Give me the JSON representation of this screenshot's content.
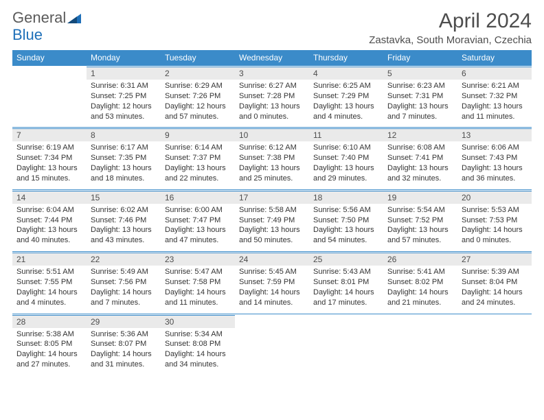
{
  "brand": {
    "general": "General",
    "blue": "Blue"
  },
  "title": "April 2024",
  "location": "Zastavka, South Moravian, Czechia",
  "colors": {
    "header_bg": "#3b8bc9",
    "header_text": "#ffffff",
    "daynum_bg": "#eaeaea",
    "border": "#3b8bc9",
    "text": "#333333",
    "title_text": "#4d4d4d"
  },
  "dayHeaders": [
    "Sunday",
    "Monday",
    "Tuesday",
    "Wednesday",
    "Thursday",
    "Friday",
    "Saturday"
  ],
  "days": [
    {
      "n": "",
      "sr": "",
      "ss": "",
      "dl": ""
    },
    {
      "n": "1",
      "sr": "Sunrise: 6:31 AM",
      "ss": "Sunset: 7:25 PM",
      "dl": "Daylight: 12 hours and 53 minutes."
    },
    {
      "n": "2",
      "sr": "Sunrise: 6:29 AM",
      "ss": "Sunset: 7:26 PM",
      "dl": "Daylight: 12 hours and 57 minutes."
    },
    {
      "n": "3",
      "sr": "Sunrise: 6:27 AM",
      "ss": "Sunset: 7:28 PM",
      "dl": "Daylight: 13 hours and 0 minutes."
    },
    {
      "n": "4",
      "sr": "Sunrise: 6:25 AM",
      "ss": "Sunset: 7:29 PM",
      "dl": "Daylight: 13 hours and 4 minutes."
    },
    {
      "n": "5",
      "sr": "Sunrise: 6:23 AM",
      "ss": "Sunset: 7:31 PM",
      "dl": "Daylight: 13 hours and 7 minutes."
    },
    {
      "n": "6",
      "sr": "Sunrise: 6:21 AM",
      "ss": "Sunset: 7:32 PM",
      "dl": "Daylight: 13 hours and 11 minutes."
    },
    {
      "n": "7",
      "sr": "Sunrise: 6:19 AM",
      "ss": "Sunset: 7:34 PM",
      "dl": "Daylight: 13 hours and 15 minutes."
    },
    {
      "n": "8",
      "sr": "Sunrise: 6:17 AM",
      "ss": "Sunset: 7:35 PM",
      "dl": "Daylight: 13 hours and 18 minutes."
    },
    {
      "n": "9",
      "sr": "Sunrise: 6:14 AM",
      "ss": "Sunset: 7:37 PM",
      "dl": "Daylight: 13 hours and 22 minutes."
    },
    {
      "n": "10",
      "sr": "Sunrise: 6:12 AM",
      "ss": "Sunset: 7:38 PM",
      "dl": "Daylight: 13 hours and 25 minutes."
    },
    {
      "n": "11",
      "sr": "Sunrise: 6:10 AM",
      "ss": "Sunset: 7:40 PM",
      "dl": "Daylight: 13 hours and 29 minutes."
    },
    {
      "n": "12",
      "sr": "Sunrise: 6:08 AM",
      "ss": "Sunset: 7:41 PM",
      "dl": "Daylight: 13 hours and 32 minutes."
    },
    {
      "n": "13",
      "sr": "Sunrise: 6:06 AM",
      "ss": "Sunset: 7:43 PM",
      "dl": "Daylight: 13 hours and 36 minutes."
    },
    {
      "n": "14",
      "sr": "Sunrise: 6:04 AM",
      "ss": "Sunset: 7:44 PM",
      "dl": "Daylight: 13 hours and 40 minutes."
    },
    {
      "n": "15",
      "sr": "Sunrise: 6:02 AM",
      "ss": "Sunset: 7:46 PM",
      "dl": "Daylight: 13 hours and 43 minutes."
    },
    {
      "n": "16",
      "sr": "Sunrise: 6:00 AM",
      "ss": "Sunset: 7:47 PM",
      "dl": "Daylight: 13 hours and 47 minutes."
    },
    {
      "n": "17",
      "sr": "Sunrise: 5:58 AM",
      "ss": "Sunset: 7:49 PM",
      "dl": "Daylight: 13 hours and 50 minutes."
    },
    {
      "n": "18",
      "sr": "Sunrise: 5:56 AM",
      "ss": "Sunset: 7:50 PM",
      "dl": "Daylight: 13 hours and 54 minutes."
    },
    {
      "n": "19",
      "sr": "Sunrise: 5:54 AM",
      "ss": "Sunset: 7:52 PM",
      "dl": "Daylight: 13 hours and 57 minutes."
    },
    {
      "n": "20",
      "sr": "Sunrise: 5:53 AM",
      "ss": "Sunset: 7:53 PM",
      "dl": "Daylight: 14 hours and 0 minutes."
    },
    {
      "n": "21",
      "sr": "Sunrise: 5:51 AM",
      "ss": "Sunset: 7:55 PM",
      "dl": "Daylight: 14 hours and 4 minutes."
    },
    {
      "n": "22",
      "sr": "Sunrise: 5:49 AM",
      "ss": "Sunset: 7:56 PM",
      "dl": "Daylight: 14 hours and 7 minutes."
    },
    {
      "n": "23",
      "sr": "Sunrise: 5:47 AM",
      "ss": "Sunset: 7:58 PM",
      "dl": "Daylight: 14 hours and 11 minutes."
    },
    {
      "n": "24",
      "sr": "Sunrise: 5:45 AM",
      "ss": "Sunset: 7:59 PM",
      "dl": "Daylight: 14 hours and 14 minutes."
    },
    {
      "n": "25",
      "sr": "Sunrise: 5:43 AM",
      "ss": "Sunset: 8:01 PM",
      "dl": "Daylight: 14 hours and 17 minutes."
    },
    {
      "n": "26",
      "sr": "Sunrise: 5:41 AM",
      "ss": "Sunset: 8:02 PM",
      "dl": "Daylight: 14 hours and 21 minutes."
    },
    {
      "n": "27",
      "sr": "Sunrise: 5:39 AM",
      "ss": "Sunset: 8:04 PM",
      "dl": "Daylight: 14 hours and 24 minutes."
    },
    {
      "n": "28",
      "sr": "Sunrise: 5:38 AM",
      "ss": "Sunset: 8:05 PM",
      "dl": "Daylight: 14 hours and 27 minutes."
    },
    {
      "n": "29",
      "sr": "Sunrise: 5:36 AM",
      "ss": "Sunset: 8:07 PM",
      "dl": "Daylight: 14 hours and 31 minutes."
    },
    {
      "n": "30",
      "sr": "Sunrise: 5:34 AM",
      "ss": "Sunset: 8:08 PM",
      "dl": "Daylight: 14 hours and 34 minutes."
    },
    {
      "n": "",
      "sr": "",
      "ss": "",
      "dl": ""
    },
    {
      "n": "",
      "sr": "",
      "ss": "",
      "dl": ""
    },
    {
      "n": "",
      "sr": "",
      "ss": "",
      "dl": ""
    },
    {
      "n": "",
      "sr": "",
      "ss": "",
      "dl": ""
    }
  ]
}
